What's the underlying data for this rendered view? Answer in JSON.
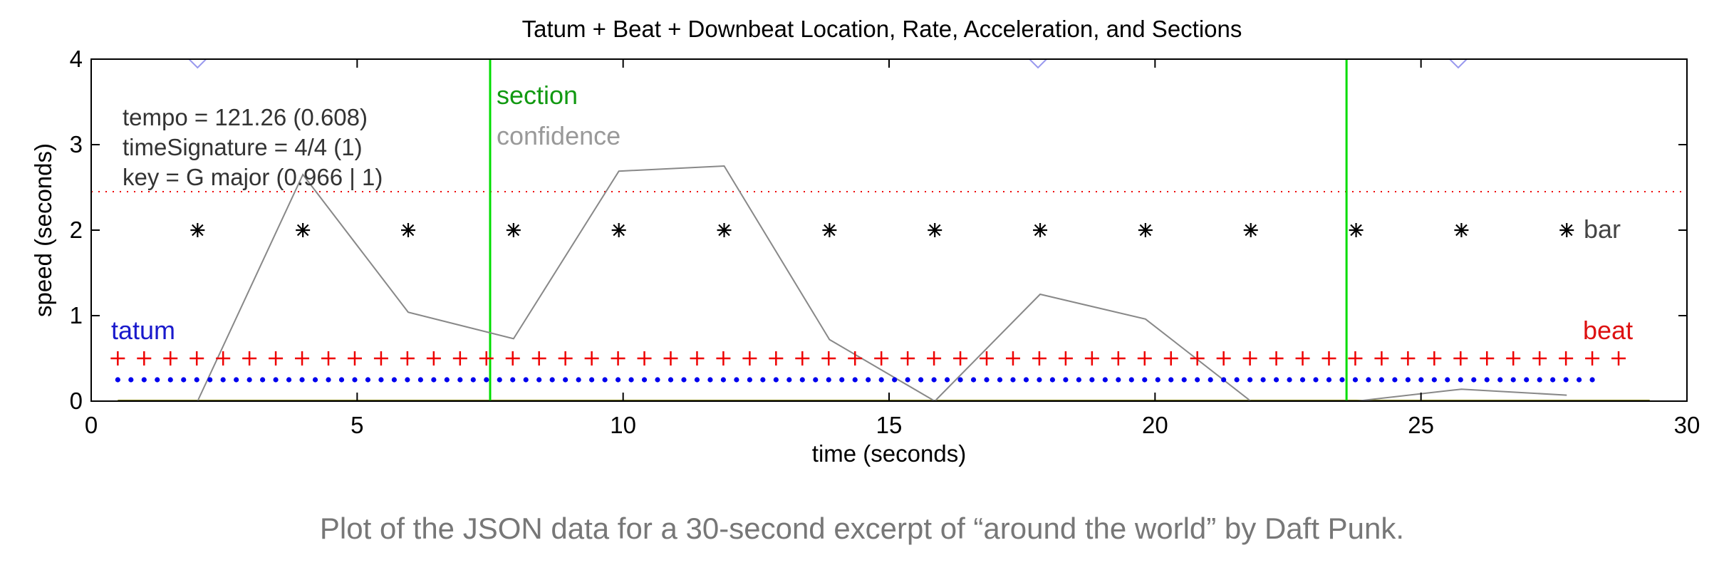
{
  "caption": "Plot of the JSON data for a 30-second excerpt of “around the world” by Daft Punk.",
  "chart_data": {
    "type": "scatter",
    "title": "Tatum + Beat + Downbeat Location, Rate, Acceleration, and Sections",
    "xlabel": "time (seconds)",
    "ylabel": "speed (seconds)",
    "xlim": [
      0,
      30
    ],
    "ylim": [
      0,
      4
    ],
    "xticks": [
      0,
      5,
      10,
      15,
      20,
      25,
      30
    ],
    "yticks": [
      0,
      1,
      2,
      3,
      4
    ],
    "grid": false,
    "info_text": [
      "tempo = 121.26 (0.608)",
      "timeSignature = 4/4 (1)",
      "key = G major (0.966 | 1)"
    ],
    "labels": {
      "section": "section",
      "confidence": "confidence",
      "bar": "bar",
      "tatum": "tatum",
      "beat": "beat"
    },
    "colors": {
      "section": "#00dd00",
      "confidence": "#888888",
      "bar": "#000000",
      "tatum": "#0000ee",
      "beat": "#ee0000",
      "threshold": "#ee0000",
      "baseline": "#777700",
      "accel": "#9999ee"
    },
    "sections": [
      7.5,
      23.6
    ],
    "threshold": 2.45,
    "bars": {
      "start": 2.0,
      "step": 1.98,
      "count": 14,
      "y": 2.0
    },
    "beats": {
      "start": 0.5,
      "step": 0.495,
      "count": 58,
      "y": 0.5
    },
    "tatums": {
      "start": 0.5,
      "step": 0.2475,
      "count": 113,
      "y": 0.25
    },
    "confidence_line": {
      "x": [
        2.0,
        3.98,
        5.96,
        7.94,
        9.92,
        11.9,
        13.88,
        15.86,
        17.84,
        19.82,
        21.8,
        23.78,
        25.76,
        27.74
      ],
      "y": [
        0.0,
        2.65,
        1.04,
        0.73,
        2.69,
        2.75,
        0.72,
        0.0,
        1.25,
        0.96,
        0.0,
        0.0,
        0.14,
        0.07
      ]
    },
    "accel_marks": [
      2.0,
      17.8,
      25.7
    ]
  }
}
